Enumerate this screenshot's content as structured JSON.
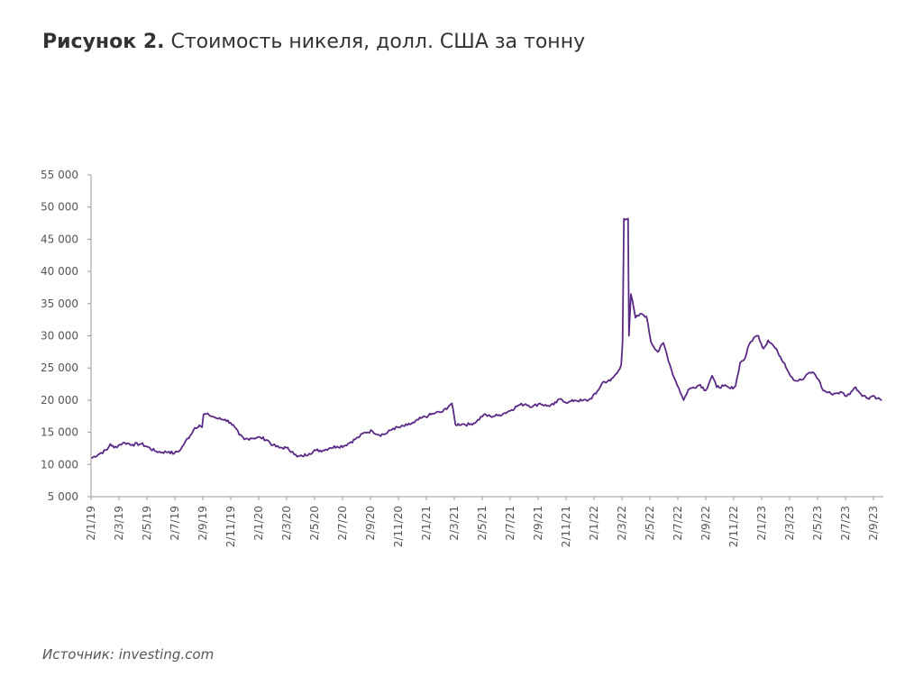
{
  "figure": {
    "number": "Рисунок 2.",
    "title": "Стоимость никеля, долл. США за тонну"
  },
  "source": {
    "label": "Источник:",
    "value": "investing.com"
  },
  "colors": {
    "line": "#5b2a86",
    "axis": "#999999",
    "text": "#555555"
  },
  "chart_data": {
    "type": "line",
    "title": "Стоимость никеля, долл. США за тонну",
    "xlabel": "",
    "ylabel": "",
    "ylim": [
      5000,
      55000
    ],
    "grid": false,
    "legend": "none",
    "y_ticks": [
      {
        "value": 5000,
        "label": "5 000"
      },
      {
        "value": 10000,
        "label": "10 000"
      },
      {
        "value": 15000,
        "label": "15 000"
      },
      {
        "value": 20000,
        "label": "20 000"
      },
      {
        "value": 25000,
        "label": "25 000"
      },
      {
        "value": 30000,
        "label": "30 000"
      },
      {
        "value": 35000,
        "label": "35 000"
      },
      {
        "value": 40000,
        "label": "40 000"
      },
      {
        "value": 45000,
        "label": "45 000"
      },
      {
        "value": 50000,
        "label": "50 000"
      },
      {
        "value": 55000,
        "label": "55 000"
      }
    ],
    "x_ticks": [
      "2/1/19",
      "2/3/19",
      "2/5/19",
      "2/7/19",
      "2/9/19",
      "2/11/19",
      "2/1/20",
      "2/3/20",
      "2/5/20",
      "2/7/20",
      "2/9/20",
      "2/11/20",
      "2/1/21",
      "2/3/21",
      "2/5/21",
      "2/7/21",
      "2/9/21",
      "2/11/21",
      "2/1/22",
      "2/3/22",
      "2/5/22",
      "2/7/22",
      "2/9/22",
      "2/11/22",
      "2/1/23",
      "2/3/23",
      "2/5/23",
      "2/7/23",
      "2/9/23"
    ],
    "series": [
      {
        "points": [
          [
            "2019-01-02",
            11000
          ],
          [
            "2019-01-20",
            11700
          ],
          [
            "2019-02-05",
            12300
          ],
          [
            "2019-02-12",
            13200
          ],
          [
            "2019-02-20",
            12600
          ],
          [
            "2019-03-05",
            13100
          ],
          [
            "2019-03-15",
            13400
          ],
          [
            "2019-04-01",
            13100
          ],
          [
            "2019-04-20",
            13200
          ],
          [
            "2019-05-05",
            12700
          ],
          [
            "2019-05-20",
            12100
          ],
          [
            "2019-06-05",
            11900
          ],
          [
            "2019-06-20",
            12000
          ],
          [
            "2019-07-01",
            11700
          ],
          [
            "2019-07-15",
            12300
          ],
          [
            "2019-07-25",
            13500
          ],
          [
            "2019-08-05",
            14500
          ],
          [
            "2019-08-15",
            15700
          ],
          [
            "2019-08-25",
            16100
          ],
          [
            "2019-08-31",
            15800
          ],
          [
            "2019-09-03",
            17800
          ],
          [
            "2019-09-15",
            17700
          ],
          [
            "2019-09-25",
            17400
          ],
          [
            "2019-10-05",
            17100
          ],
          [
            "2019-10-20",
            17000
          ],
          [
            "2019-11-01",
            16500
          ],
          [
            "2019-11-10",
            15800
          ],
          [
            "2019-11-20",
            14600
          ],
          [
            "2019-12-01",
            13900
          ],
          [
            "2019-12-15",
            14100
          ],
          [
            "2020-01-05",
            14200
          ],
          [
            "2020-01-20",
            13800
          ],
          [
            "2020-02-01",
            13000
          ],
          [
            "2020-02-15",
            12600
          ],
          [
            "2020-03-01",
            12600
          ],
          [
            "2020-03-15",
            12000
          ],
          [
            "2020-03-25",
            11200
          ],
          [
            "2020-04-05",
            11300
          ],
          [
            "2020-04-20",
            11700
          ],
          [
            "2020-05-05",
            12200
          ],
          [
            "2020-05-20",
            12200
          ],
          [
            "2020-06-05",
            12600
          ],
          [
            "2020-06-20",
            12800
          ],
          [
            "2020-07-05",
            12900
          ],
          [
            "2020-07-20",
            13500
          ],
          [
            "2020-08-05",
            14200
          ],
          [
            "2020-08-20",
            15000
          ],
          [
            "2020-09-05",
            15200
          ],
          [
            "2020-09-20",
            14600
          ],
          [
            "2020-10-05",
            14800
          ],
          [
            "2020-10-20",
            15600
          ],
          [
            "2020-11-05",
            15800
          ],
          [
            "2020-11-20",
            16100
          ],
          [
            "2020-12-05",
            16500
          ],
          [
            "2020-12-20",
            17200
          ],
          [
            "2021-01-05",
            17600
          ],
          [
            "2021-01-20",
            18000
          ],
          [
            "2021-02-05",
            18200
          ],
          [
            "2021-02-20",
            19200
          ],
          [
            "2021-02-25",
            19500
          ],
          [
            "2021-03-05",
            16200
          ],
          [
            "2021-03-20",
            16300
          ],
          [
            "2021-04-05",
            16200
          ],
          [
            "2021-04-20",
            16700
          ],
          [
            "2021-05-05",
            17700
          ],
          [
            "2021-05-20",
            17500
          ],
          [
            "2021-06-05",
            17600
          ],
          [
            "2021-06-20",
            18000
          ],
          [
            "2021-07-05",
            18500
          ],
          [
            "2021-07-20",
            19200
          ],
          [
            "2021-08-05",
            19400
          ],
          [
            "2021-08-20",
            19000
          ],
          [
            "2021-09-05",
            19500
          ],
          [
            "2021-09-20",
            19100
          ],
          [
            "2021-10-05",
            19300
          ],
          [
            "2021-10-20",
            20200
          ],
          [
            "2021-11-05",
            19600
          ],
          [
            "2021-11-20",
            20000
          ],
          [
            "2021-12-05",
            19900
          ],
          [
            "2021-12-20",
            20000
          ],
          [
            "2022-01-05",
            21000
          ],
          [
            "2022-01-20",
            22800
          ],
          [
            "2022-02-05",
            23000
          ],
          [
            "2022-02-20",
            24200
          ],
          [
            "2022-03-01",
            25500
          ],
          [
            "2022-03-04",
            29000
          ],
          [
            "2022-03-07",
            48200
          ],
          [
            "2022-03-16",
            48200
          ],
          [
            "2022-03-18",
            30000
          ],
          [
            "2022-03-22",
            36500
          ],
          [
            "2022-04-01",
            32800
          ],
          [
            "2022-04-15",
            33400
          ],
          [
            "2022-04-25",
            33000
          ],
          [
            "2022-05-05",
            29000
          ],
          [
            "2022-05-20",
            27500
          ],
          [
            "2022-06-01",
            28900
          ],
          [
            "2022-06-15",
            25500
          ],
          [
            "2022-06-25",
            23400
          ],
          [
            "2022-07-05",
            21800
          ],
          [
            "2022-07-15",
            20000
          ],
          [
            "2022-07-25",
            21600
          ],
          [
            "2022-08-05",
            22000
          ],
          [
            "2022-08-20",
            22400
          ],
          [
            "2022-09-01",
            21500
          ],
          [
            "2022-09-15",
            23800
          ],
          [
            "2022-09-25",
            22000
          ],
          [
            "2022-10-10",
            22200
          ],
          [
            "2022-10-25",
            21800
          ],
          [
            "2022-11-05",
            22200
          ],
          [
            "2022-11-15",
            25800
          ],
          [
            "2022-11-25",
            26400
          ],
          [
            "2022-12-05",
            28700
          ],
          [
            "2022-12-15",
            29700
          ],
          [
            "2022-12-25",
            30000
          ],
          [
            "2023-01-05",
            28000
          ],
          [
            "2023-01-15",
            29300
          ],
          [
            "2023-01-25",
            28600
          ],
          [
            "2023-02-05",
            27500
          ],
          [
            "2023-02-20",
            25700
          ],
          [
            "2023-03-01",
            24300
          ],
          [
            "2023-03-15",
            23000
          ],
          [
            "2023-04-01",
            23200
          ],
          [
            "2023-04-15",
            24300
          ],
          [
            "2023-04-25",
            24200
          ],
          [
            "2023-05-05",
            23200
          ],
          [
            "2023-05-15",
            21500
          ],
          [
            "2023-06-01",
            21000
          ],
          [
            "2023-06-15",
            21100
          ],
          [
            "2023-06-25",
            21200
          ],
          [
            "2023-07-05",
            20600
          ],
          [
            "2023-07-15",
            21300
          ],
          [
            "2023-07-25",
            22000
          ],
          [
            "2023-08-05",
            21000
          ],
          [
            "2023-08-20",
            20300
          ],
          [
            "2023-09-01",
            20700
          ],
          [
            "2023-09-10",
            20300
          ],
          [
            "2023-09-20",
            20000
          ]
        ]
      }
    ]
  }
}
